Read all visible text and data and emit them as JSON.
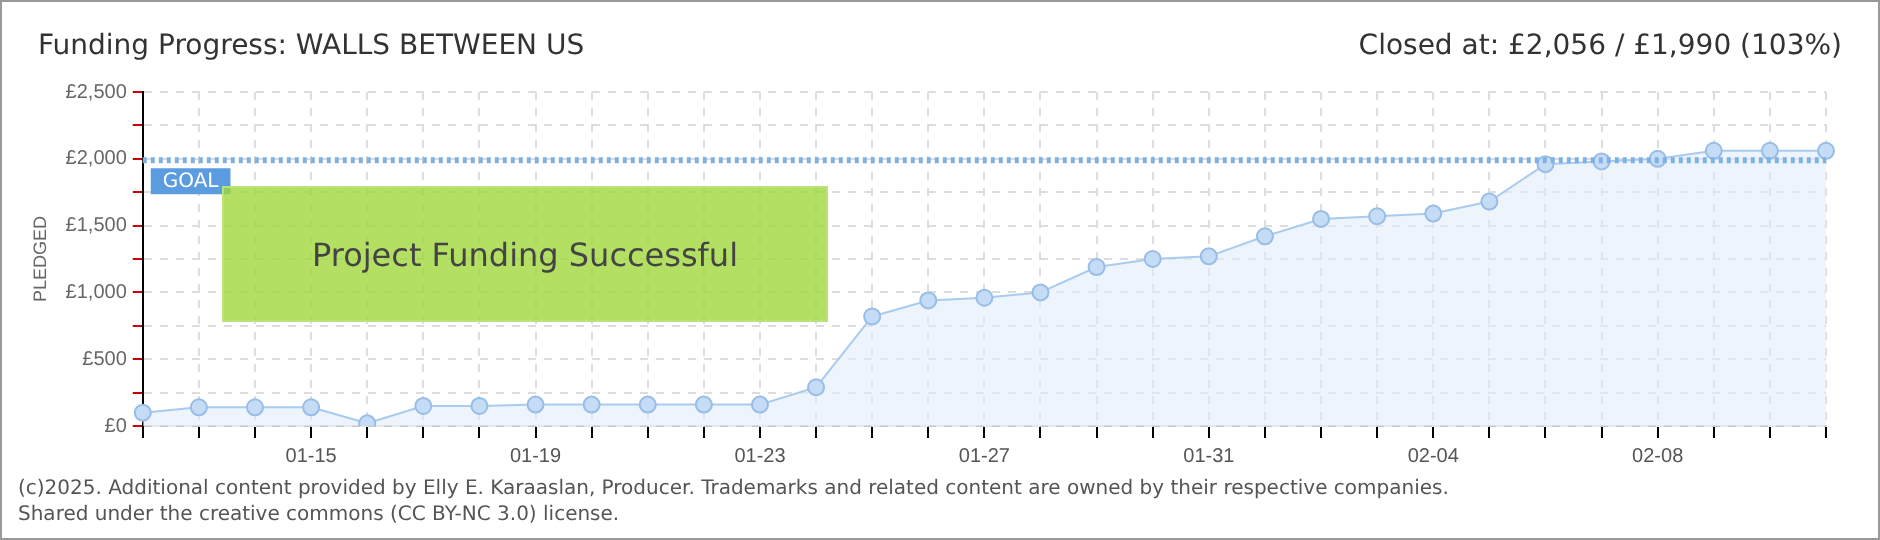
{
  "chart_data": {
    "type": "area",
    "title": "Funding Progress: WALLS BETWEEN US",
    "subtitle": "Closed at:  £2,056 / £1,990 (103%)",
    "ylabel": "PLEDGED",
    "categories": [
      null,
      null,
      null,
      "01-15",
      null,
      null,
      null,
      "01-19",
      null,
      null,
      null,
      "01-23",
      null,
      null,
      null,
      "01-27",
      null,
      null,
      null,
      "01-31",
      null,
      null,
      null,
      "02-04",
      null,
      null,
      null,
      "02-08",
      null,
      null,
      null
    ],
    "series": [
      {
        "color": "#a9cbee",
        "values": [
          100,
          140,
          140,
          140,
          20,
          150,
          150,
          160,
          160,
          160,
          160,
          160,
          290,
          820,
          940,
          960,
          1000,
          1190,
          1250,
          1270,
          1420,
          1550,
          1570,
          1590,
          1680,
          1960,
          1980,
          2000,
          2060,
          2060,
          2060
        ]
      }
    ],
    "ylim": [
      0,
      2500
    ],
    "yticks": [
      {
        "value": 0,
        "label": "£0"
      },
      {
        "value": 250,
        "label": null
      },
      {
        "value": 500,
        "label": "£500"
      },
      {
        "value": 750,
        "label": null
      },
      {
        "value": 1000,
        "label": "£1,000"
      },
      {
        "value": 1250,
        "label": null
      },
      {
        "value": 1500,
        "label": "£1,500"
      },
      {
        "value": 1750,
        "label": null
      },
      {
        "value": 2000,
        "label": "£2,000"
      },
      {
        "value": 2250,
        "label": null
      },
      {
        "value": 2500,
        "label": "£2,500"
      }
    ],
    "ref_lines": [
      {
        "axis": "y",
        "value": 1990,
        "label": "GOAL",
        "color": "#7fb0e6",
        "line_style": "dotted"
      }
    ],
    "grid": true,
    "marker": "circle",
    "legend": false,
    "annotations": [
      "Project Funding Successful",
      "(c)2025. Additional content provided by Elly E. Karaaslan, Producer. Trademarks and related content are owned by their respective companies.",
      "Shared under the creative commons (CC BY-NC 3.0) license."
    ]
  }
}
